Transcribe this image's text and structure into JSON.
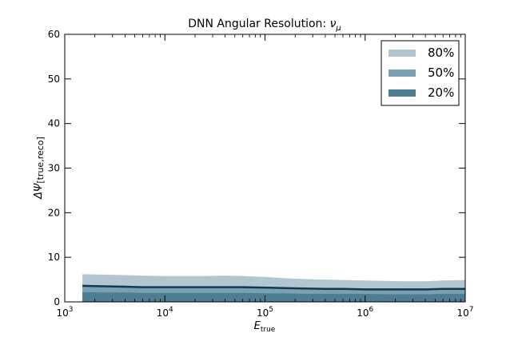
{
  "chart_data": {
    "type": "area",
    "title_text": "DNN Angular Resolution: ",
    "title_symbol": "ν",
    "title_subscript": "μ",
    "xlabel_symbol": "E",
    "xlabel_subscript": "true",
    "ylabel_symbol": "ΔΨ",
    "ylabel_subscript": "[true,reco]",
    "x_scale": "log",
    "xlim": [
      1000,
      10000000
    ],
    "ylim": [
      0,
      60
    ],
    "x_ticks": [
      {
        "value": 1000,
        "base": "10",
        "exp": "3"
      },
      {
        "value": 10000,
        "base": "10",
        "exp": "4"
      },
      {
        "value": 100000,
        "base": "10",
        "exp": "5"
      },
      {
        "value": 1000000,
        "base": "10",
        "exp": "6"
      },
      {
        "value": 10000000,
        "base": "10",
        "exp": "7"
      }
    ],
    "y_ticks": [
      0,
      10,
      20,
      30,
      40,
      50,
      60
    ],
    "grid": false,
    "legend_position": "top-right",
    "x": [
      1500,
      2500,
      4000,
      6000,
      10000,
      16000,
      25000,
      40000,
      60000,
      100000,
      160000,
      250000,
      400000,
      600000,
      1000000,
      1600000,
      2500000,
      4000000,
      6000000,
      10000000
    ],
    "series": [
      {
        "name": "80%",
        "color": "#b2c6cf",
        "upper": [
          6.2,
          6.1,
          6.0,
          5.9,
          5.8,
          5.8,
          5.8,
          5.9,
          5.8,
          5.6,
          5.3,
          5.1,
          5.0,
          4.9,
          4.8,
          4.7,
          4.6,
          4.6,
          4.8,
          4.9
        ]
      },
      {
        "name": "50%",
        "color": "#7aa0b1",
        "upper": [
          3.7,
          3.6,
          3.5,
          3.4,
          3.4,
          3.4,
          3.4,
          3.4,
          3.4,
          3.3,
          3.2,
          3.1,
          3.0,
          3.0,
          2.9,
          2.9,
          2.9,
          2.9,
          3.0,
          3.0
        ]
      },
      {
        "name": "20%",
        "color": "#4f7e92",
        "upper": [
          2.2,
          2.1,
          2.1,
          2.0,
          2.0,
          2.0,
          2.0,
          2.0,
          2.0,
          1.9,
          1.9,
          1.8,
          1.8,
          1.8,
          1.8,
          1.7,
          1.7,
          1.7,
          1.8,
          1.8
        ]
      }
    ],
    "median_line": {
      "color": "#0d3a52",
      "values": [
        3.6,
        3.5,
        3.4,
        3.3,
        3.3,
        3.3,
        3.3,
        3.3,
        3.3,
        3.2,
        3.1,
        3.0,
        2.9,
        2.9,
        2.8,
        2.8,
        2.8,
        2.8,
        2.9,
        2.9
      ]
    }
  }
}
